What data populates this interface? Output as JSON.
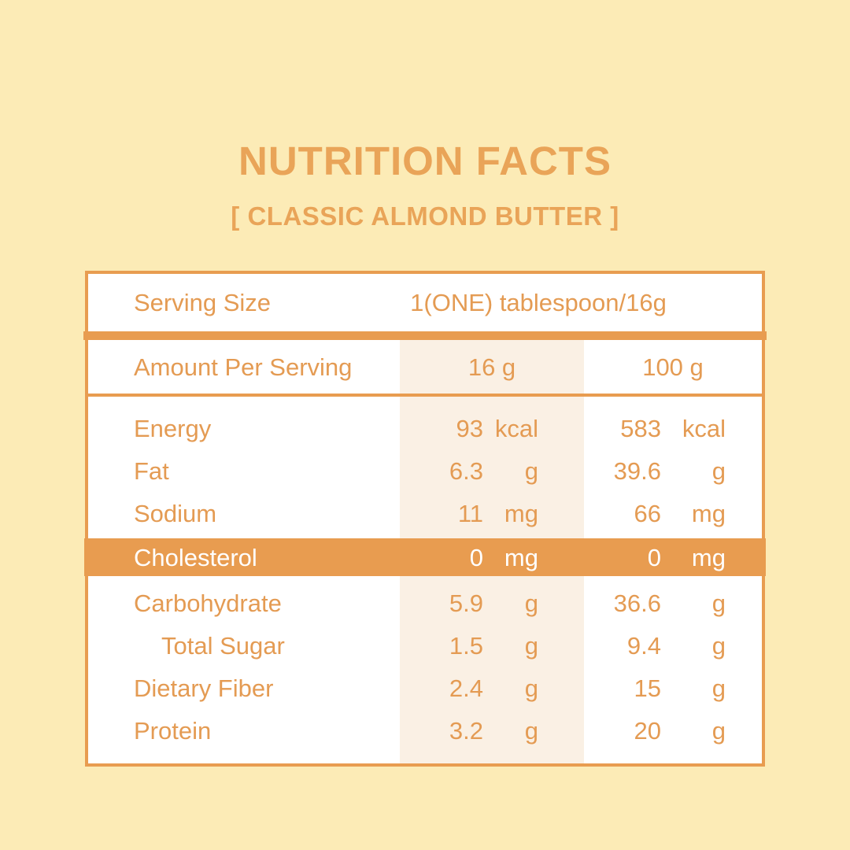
{
  "page": {
    "title": "NUTRITION FACTS",
    "subtitle": "[ CLASSIC ALMOND BUTTER ]"
  },
  "colors": {
    "page_background": "#FCEBB6",
    "accent_orange": "#E89C50",
    "text_orange": "#E49B53",
    "title_orange": "#E9A458",
    "shaded_column": "#FAF0E4",
    "highlight_row_background": "#E89C50",
    "highlight_row_text": "#FFFFFF",
    "table_background": "#FFFFFF"
  },
  "table": {
    "serving": {
      "label": "Serving Size",
      "value": "1(ONE) tablespoon/16g"
    },
    "header": {
      "label": "Amount Per Serving",
      "col1": "16 g",
      "col2": "100 g"
    },
    "rows": [
      {
        "label": "Energy",
        "v1": "93",
        "u1": "kcal",
        "v2": "583",
        "u2": "kcal",
        "highlight": false,
        "indent": false
      },
      {
        "label": "Fat",
        "v1": "6.3",
        "u1": "g",
        "v2": "39.6",
        "u2": "g",
        "highlight": false,
        "indent": false
      },
      {
        "label": "Sodium",
        "v1": "11",
        "u1": "mg",
        "v2": "66",
        "u2": "mg",
        "highlight": false,
        "indent": false
      },
      {
        "label": "Cholesterol",
        "v1": "0",
        "u1": "mg",
        "v2": "0",
        "u2": "mg",
        "highlight": true,
        "indent": false
      },
      {
        "label": "Carbohydrate",
        "v1": "5.9",
        "u1": "g",
        "v2": "36.6",
        "u2": "g",
        "highlight": false,
        "indent": false
      },
      {
        "label": "Total Sugar",
        "v1": "1.5",
        "u1": "g",
        "v2": "9.4",
        "u2": "g",
        "highlight": false,
        "indent": true
      },
      {
        "label": "Dietary Fiber",
        "v1": "2.4",
        "u1": "g",
        "v2": "15",
        "u2": "g",
        "highlight": false,
        "indent": false
      },
      {
        "label": "Protein",
        "v1": "3.2",
        "u1": "g",
        "v2": "20",
        "u2": "g",
        "highlight": false,
        "indent": false
      }
    ]
  }
}
